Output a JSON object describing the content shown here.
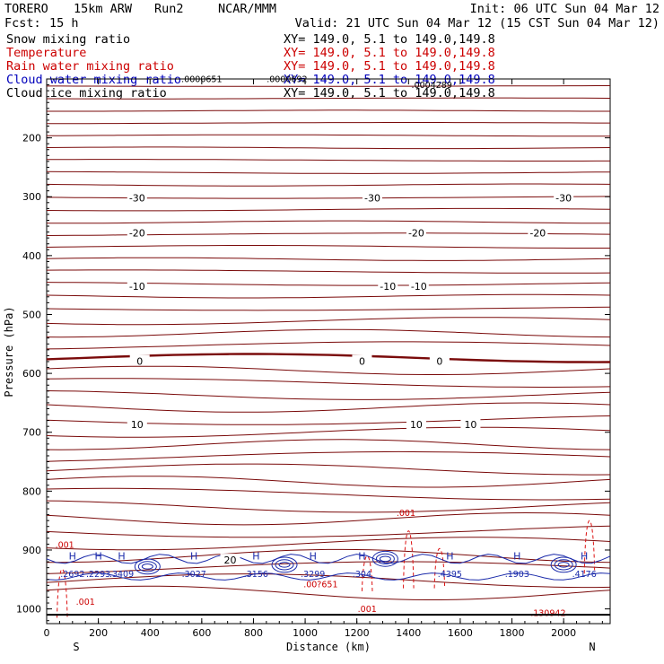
{
  "header": {
    "model": "TORERO",
    "grid": "15km ARW",
    "run": "Run2",
    "center": "NCAR/MMM",
    "init": "Init: 06 UTC Sun 04 Mar 12",
    "fcst_label": "Fcst:",
    "fcst_value": "15 h",
    "valid": "Valid: 21 UTC Sun 04 Mar 12 (15 CST Sun 04 Mar 12)"
  },
  "legend": [
    {
      "name": "Snow mixing ratio",
      "xy": "XY= 149.0,  5.1 to 149.0,149.8",
      "color": "#000000"
    },
    {
      "name": "Temperature",
      "xy": "XY= 149.0,  5.1 to 149.0,149.8",
      "color": "#cc0000"
    },
    {
      "name": "Rain water mixing ratio",
      "xy": "XY= 149.0,  5.1 to 149.0,149.8",
      "color": "#cc0000"
    },
    {
      "name": "Cloud water mixing ratio",
      "xy": "XY= 149.0,  5.1 to 149.0,149.8",
      "color": "#0000bb"
    },
    {
      "name": "Cloud ice mixing ratio",
      "xy": "XY= 149.0,  5.1 to 149.0,149.8",
      "color": "#000000"
    }
  ],
  "chart_data": {
    "type": "cross-section contour",
    "xlabel": "Distance (km)",
    "ylabel": "Pressure (hPa)",
    "xlim": [
      0,
      2180
    ],
    "ylim": [
      1025,
      100
    ],
    "x_ticks": [
      0,
      200,
      400,
      600,
      800,
      1000,
      1200,
      1400,
      1600,
      1800,
      2000
    ],
    "y_ticks": [
      200,
      300,
      400,
      500,
      600,
      700,
      800,
      900,
      1000
    ],
    "x_end_labels": {
      "left": "S",
      "right": "N"
    },
    "surface_pressure": 1010,
    "temperature_isotherm_labels": [
      {
        "value": "-30",
        "x": [
          350,
          1260,
          2000
        ],
        "p": 302
      },
      {
        "value": "-20",
        "x": [
          350,
          1430,
          1900
        ],
        "p": 361
      },
      {
        "value": "-10",
        "x": [
          350,
          1320,
          1440
        ],
        "p": 452
      },
      {
        "value": "0",
        "x": [
          360,
          1220,
          1520
        ],
        "p": 579
      },
      {
        "value": "10",
        "x": [
          350,
          1430,
          1640
        ],
        "p": 687
      },
      {
        "value": "20",
        "x": [
          710
        ],
        "p": 917
      }
    ],
    "cloud_water_maxima": [
      {
        "label": "H",
        "value": ".2692",
        "x": 100
      },
      {
        "label": "H",
        "value": ".2293",
        "x": 200
      },
      {
        "label": "H",
        "value": ".3409",
        "x": 290
      },
      {
        "label": "H",
        "value": ".3027",
        "x": 570
      },
      {
        "label": "H",
        "value": ".3156",
        "x": 810
      },
      {
        "label": "H",
        "value": ".3299",
        "x": 1030
      },
      {
        "label": "H",
        "value": ".304",
        "x": 1220
      },
      {
        "label": "H",
        "value": ".4395",
        "x": 1560
      },
      {
        "label": "H",
        "value": ".1903",
        "x": 1820
      },
      {
        "label": "H",
        "value": ".4176",
        "x": 2080
      }
    ],
    "rain_labels": [
      ".001",
      ".001",
      ".001",
      ".001",
      ".00?651",
      ".130942"
    ],
    "snow_ice_labels": [
      ".0000651",
      ".0000692",
      ".0004289"
    ]
  }
}
